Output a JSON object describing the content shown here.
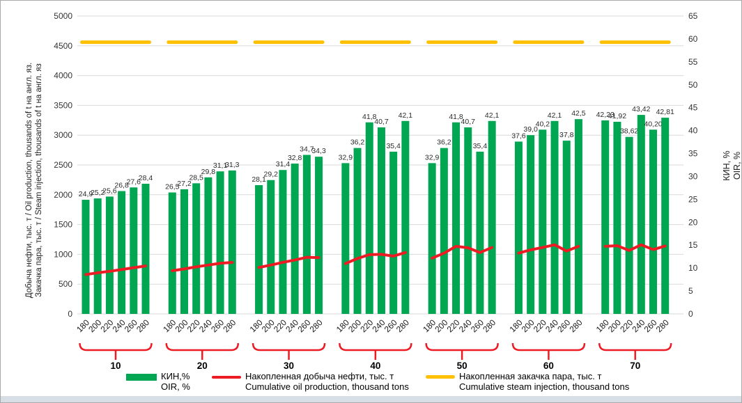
{
  "frame": {
    "background": "#ffffff",
    "border_color": "#a9a9a9",
    "footer_strip_color": "#d7dee6"
  },
  "chart_data": {
    "type": "bar",
    "combo_types": [
      "bar",
      "line",
      "dashed-line"
    ],
    "title": "",
    "grid": true,
    "left_axis": {
      "title_line1": "Добыча нефти, тыс. т / Oil production, thousands of t на англ. яз.",
      "title_line2": "Закачка пара, тыс. т / Steam injection, thousands of t на англ. яз",
      "min": 0,
      "max": 5000,
      "step": 500
    },
    "right_axis": {
      "title_line1": "КИН, %",
      "title_line2": "OIR, %",
      "min": 0,
      "max": 65,
      "step": 5
    },
    "x_ticks_per_group": [
      "180",
      "200",
      "220",
      "240",
      "260",
      "280"
    ],
    "groups": [
      {
        "label": "10",
        "bars": [
          24.9,
          25.2,
          25.6,
          26.8,
          27.6,
          28.4
        ],
        "bar_labels": [
          "24,9",
          "25,2",
          "25,6",
          "26,8",
          "27,6",
          "28,4"
        ],
        "oil_line": [
          660,
          690,
          715,
          745,
          775,
          805
        ],
        "steam": 4560
      },
      {
        "label": "20",
        "bars": [
          26.5,
          27.2,
          28.5,
          29.8,
          31.1,
          31.3
        ],
        "bar_labels": [
          "26,5",
          "27,2",
          "28,5",
          "29,8",
          "31,1",
          "31,3"
        ],
        "oil_line": [
          725,
          755,
          790,
          820,
          850,
          865
        ],
        "steam": 4560
      },
      {
        "label": "30",
        "bars": [
          28.1,
          29.2,
          31.4,
          32.8,
          34.7,
          34.3
        ],
        "bar_labels": [
          "28,1",
          "29,2",
          "31,4",
          "32,8",
          "34,7",
          "34,3"
        ],
        "oil_line": [
          780,
          820,
          865,
          905,
          950,
          945
        ],
        "steam": 4560
      },
      {
        "label": "40",
        "bars": [
          32.9,
          36.2,
          41.8,
          40.7,
          35.4,
          42.1
        ],
        "bar_labels": [
          "32,9",
          "36,2",
          "41,8",
          "40,7",
          "35,4",
          "42,1"
        ],
        "oil_line": [
          845,
          930,
          995,
          1000,
          970,
          1030
        ],
        "steam": 4560
      },
      {
        "label": "50",
        "bars": [
          32.9,
          36.2,
          41.8,
          40.7,
          35.4,
          42.1
        ],
        "bar_labels": [
          "32,9",
          "36,2",
          "41,8",
          "40,7",
          "35,4",
          "42,1"
        ],
        "oil_line": [
          935,
          1020,
          1135,
          1110,
          1030,
          1115
        ],
        "steam": 4560
      },
      {
        "label": "60",
        "bars": [
          37.6,
          39.0,
          40.2,
          42.1,
          37.8,
          42.5
        ],
        "bar_labels": [
          "37,6",
          "39,0",
          "40,2",
          "42,1",
          "37,8",
          "42,5"
        ],
        "oil_line": [
          1020,
          1075,
          1115,
          1160,
          1055,
          1135
        ],
        "steam": 4560
      },
      {
        "label": "70",
        "bars": [
          42.23,
          41.92,
          38.62,
          43.42,
          40.2,
          42.81
        ],
        "bar_labels": [
          "42,23",
          "41,92",
          "38,62",
          "43,42",
          "40,20",
          "42,81"
        ],
        "oil_line": [
          1135,
          1145,
          1065,
          1160,
          1080,
          1140
        ],
        "steam": 4560
      }
    ],
    "legend": [
      {
        "swatch": "bar",
        "color": "#00a651",
        "label_line1": "КИН,%",
        "label_line2": "OIR, %"
      },
      {
        "swatch": "line",
        "color": "#ed1c24",
        "label_line1": "Накопленная добыча нефти, тыс. т",
        "label_line2": "Cumulative oil production, thousand tons"
      },
      {
        "swatch": "dash",
        "color": "#ffc000",
        "label_line1": "Накопленная закачка пара, тыс. т",
        "label_line2": "Cumulative steam injection, thousand tons"
      }
    ],
    "colors": {
      "bar": "#00a651",
      "oil_line": "#ed1c24",
      "steam_dash": "#ffc000",
      "grid": "#d9d9d9",
      "bracket": "#ed1c24",
      "tick_text": "#333333",
      "label_text": "#2b2b2b"
    }
  }
}
